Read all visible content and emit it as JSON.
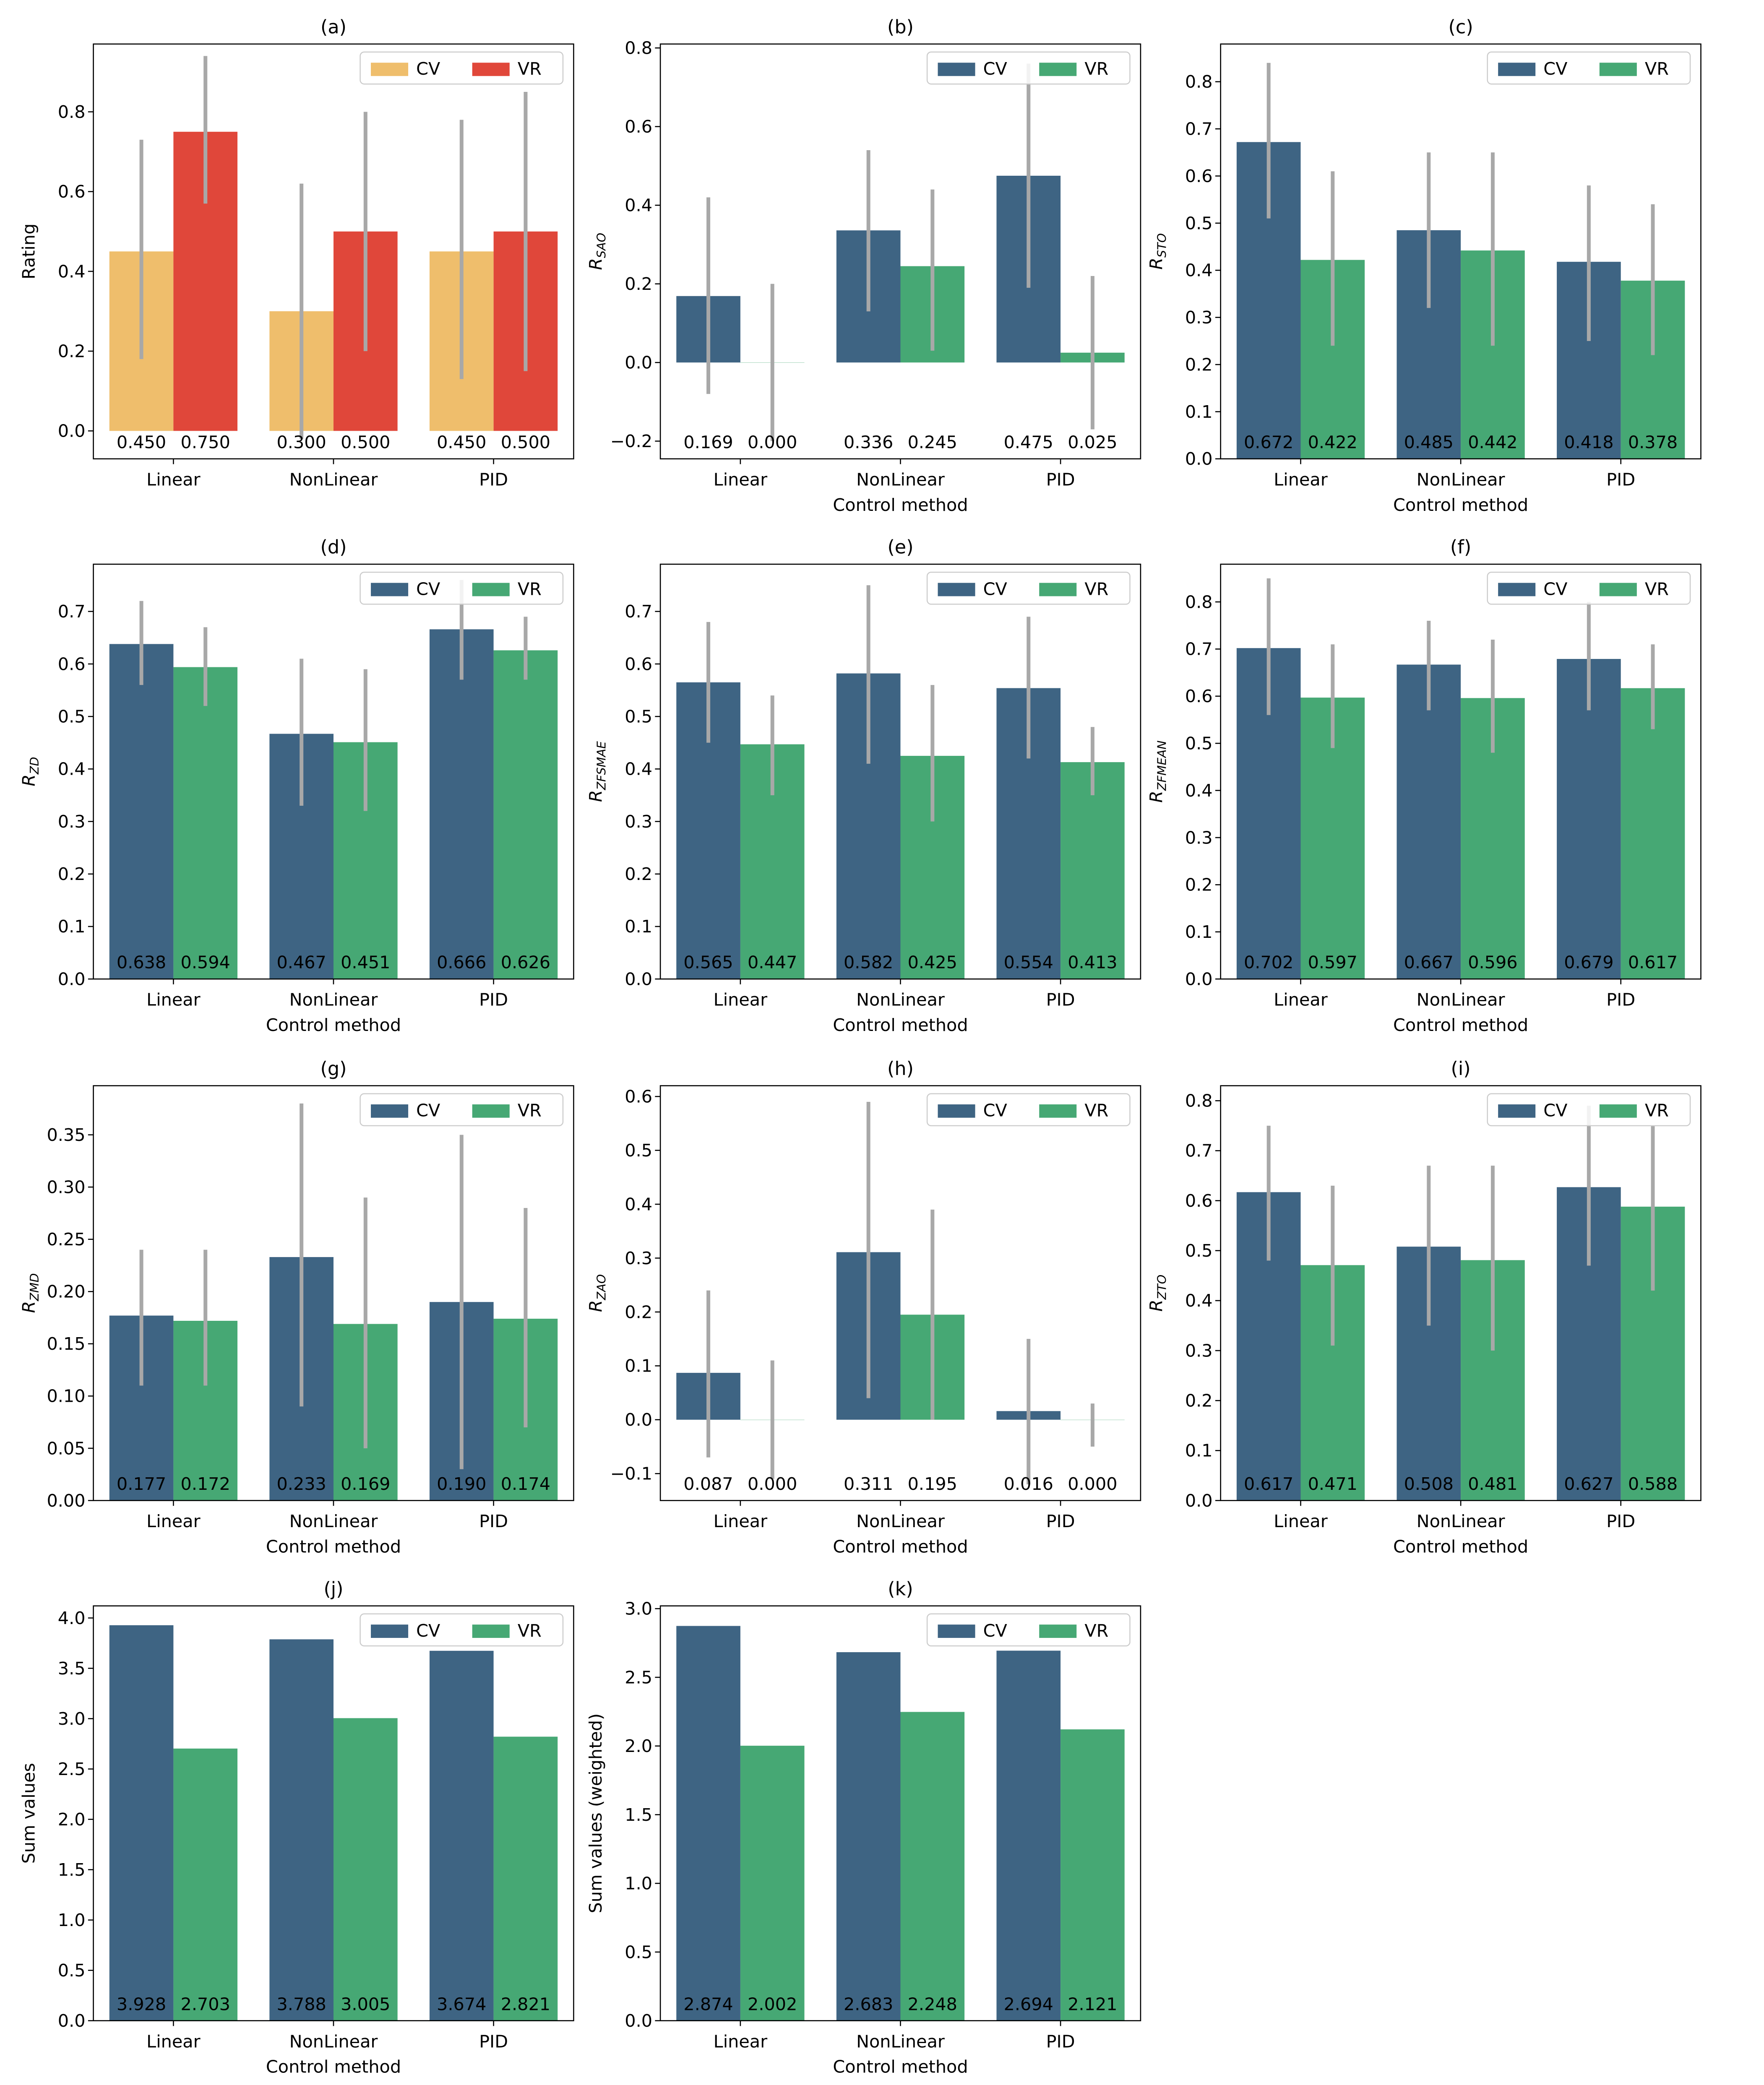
{
  "chart_data": [
    {
      "panel": "(a)",
      "type": "bar",
      "title": "(a)",
      "xlabel": "",
      "ylabel": "Rating",
      "ylabel_sub": "",
      "categories": [
        "Linear",
        "NonLinear",
        "PID"
      ],
      "ylim": [
        -0.07,
        0.97
      ],
      "yticks": [
        0.0,
        0.2,
        0.4,
        0.6,
        0.8
      ],
      "tick_decimals": 1,
      "legend": {
        "position": "top-right",
        "entries": [
          "CV",
          "VR"
        ]
      },
      "series": [
        {
          "name": "CV",
          "color": "#efbe6c",
          "values": [
            0.45,
            0.3,
            0.45
          ],
          "err_low": [
            0.18,
            -0.02,
            0.13
          ],
          "err_high": [
            0.73,
            0.62,
            0.78
          ]
        },
        {
          "name": "VR",
          "color": "#e0473a",
          "values": [
            0.75,
            0.5,
            0.5
          ],
          "err_low": [
            0.57,
            0.2,
            0.15
          ],
          "err_high": [
            0.94,
            0.8,
            0.85
          ]
        }
      ],
      "value_labels": [
        [
          "0.450",
          "0.300",
          "0.450"
        ],
        [
          "0.750",
          "0.500",
          "0.500"
        ]
      ]
    },
    {
      "panel": "(b)",
      "type": "bar",
      "title": "(b)",
      "xlabel": "Control method",
      "ylabel": "R",
      "ylabel_sub": "SAO",
      "categories": [
        "Linear",
        "NonLinear",
        "PID"
      ],
      "ylim": [
        -0.245,
        0.81
      ],
      "yticks": [
        -0.2,
        0.0,
        0.2,
        0.4,
        0.6,
        0.8
      ],
      "tick_decimals": 1,
      "legend": {
        "position": "top-right",
        "entries": [
          "CV",
          "VR"
        ]
      },
      "series": [
        {
          "name": "CV",
          "color": "#3e6483",
          "values": [
            0.169,
            0.336,
            0.475
          ],
          "err_low": [
            -0.08,
            0.13,
            0.19
          ],
          "err_high": [
            0.42,
            0.54,
            0.76
          ]
        },
        {
          "name": "VR",
          "color": "#46a874",
          "values": [
            0.0,
            0.245,
            0.025
          ],
          "err_low": [
            -0.2,
            0.03,
            -0.17
          ],
          "err_high": [
            0.2,
            0.44,
            0.22
          ]
        }
      ],
      "value_labels": [
        [
          "0.169",
          "0.336",
          "0.475"
        ],
        [
          "0.000",
          "0.245",
          "0.025"
        ]
      ]
    },
    {
      "panel": "(c)",
      "type": "bar",
      "title": "(c)",
      "xlabel": "Control method",
      "ylabel": "R",
      "ylabel_sub": "STO",
      "categories": [
        "Linear",
        "NonLinear",
        "PID"
      ],
      "ylim": [
        0,
        0.88
      ],
      "yticks": [
        0.0,
        0.1,
        0.2,
        0.3,
        0.4,
        0.5,
        0.6,
        0.7,
        0.8
      ],
      "tick_decimals": 1,
      "legend": {
        "position": "top-right",
        "entries": [
          "CV",
          "VR"
        ]
      },
      "series": [
        {
          "name": "CV",
          "color": "#3e6483",
          "values": [
            0.672,
            0.485,
            0.418
          ],
          "err_low": [
            0.51,
            0.32,
            0.25
          ],
          "err_high": [
            0.84,
            0.65,
            0.58
          ]
        },
        {
          "name": "VR",
          "color": "#46a874",
          "values": [
            0.422,
            0.442,
            0.378
          ],
          "err_low": [
            0.24,
            0.24,
            0.22
          ],
          "err_high": [
            0.61,
            0.65,
            0.54
          ]
        }
      ],
      "value_labels": [
        [
          "0.672",
          "0.485",
          "0.418"
        ],
        [
          "0.422",
          "0.442",
          "0.378"
        ]
      ]
    },
    {
      "panel": "(d)",
      "type": "bar",
      "title": "(d)",
      "xlabel": "Control method",
      "ylabel": "R",
      "ylabel_sub": "ZD",
      "categories": [
        "Linear",
        "NonLinear",
        "PID"
      ],
      "ylim": [
        0,
        0.79
      ],
      "yticks": [
        0.0,
        0.1,
        0.2,
        0.3,
        0.4,
        0.5,
        0.6,
        0.7
      ],
      "tick_decimals": 1,
      "legend": {
        "position": "top-right",
        "entries": [
          "CV",
          "VR"
        ]
      },
      "series": [
        {
          "name": "CV",
          "color": "#3e6483",
          "values": [
            0.638,
            0.467,
            0.666
          ],
          "err_low": [
            0.56,
            0.33,
            0.57
          ],
          "err_high": [
            0.72,
            0.61,
            0.76
          ]
        },
        {
          "name": "VR",
          "color": "#46a874",
          "values": [
            0.594,
            0.451,
            0.626
          ],
          "err_low": [
            0.52,
            0.32,
            0.57
          ],
          "err_high": [
            0.67,
            0.59,
            0.69
          ]
        }
      ],
      "value_labels": [
        [
          "0.638",
          "0.467",
          "0.666"
        ],
        [
          "0.594",
          "0.451",
          "0.626"
        ]
      ]
    },
    {
      "panel": "(e)",
      "type": "bar",
      "title": "(e)",
      "xlabel": "Control method",
      "ylabel": "R",
      "ylabel_sub": "ZFSMAE",
      "categories": [
        "Linear",
        "NonLinear",
        "PID"
      ],
      "ylim": [
        0,
        0.79
      ],
      "yticks": [
        0.0,
        0.1,
        0.2,
        0.3,
        0.4,
        0.5,
        0.6,
        0.7
      ],
      "tick_decimals": 1,
      "legend": {
        "position": "top-right",
        "entries": [
          "CV",
          "VR"
        ]
      },
      "series": [
        {
          "name": "CV",
          "color": "#3e6483",
          "values": [
            0.565,
            0.582,
            0.554
          ],
          "err_low": [
            0.45,
            0.41,
            0.42
          ],
          "err_high": [
            0.68,
            0.75,
            0.69
          ]
        },
        {
          "name": "VR",
          "color": "#46a874",
          "values": [
            0.447,
            0.425,
            0.413
          ],
          "err_low": [
            0.35,
            0.3,
            0.35
          ],
          "err_high": [
            0.54,
            0.56,
            0.48
          ]
        }
      ],
      "value_labels": [
        [
          "0.565",
          "0.582",
          "0.554"
        ],
        [
          "0.447",
          "0.425",
          "0.413"
        ]
      ]
    },
    {
      "panel": "(f)",
      "type": "bar",
      "title": "(f)",
      "xlabel": "Control method",
      "ylabel": "R",
      "ylabel_sub": "ZFMEAN",
      "categories": [
        "Linear",
        "NonLinear",
        "PID"
      ],
      "ylim": [
        0,
        0.88
      ],
      "yticks": [
        0.0,
        0.1,
        0.2,
        0.3,
        0.4,
        0.5,
        0.6,
        0.7,
        0.8
      ],
      "tick_decimals": 1,
      "legend": {
        "position": "top-right",
        "entries": [
          "CV",
          "VR"
        ]
      },
      "series": [
        {
          "name": "CV",
          "color": "#3e6483",
          "values": [
            0.702,
            0.667,
            0.679
          ],
          "err_low": [
            0.56,
            0.57,
            0.57
          ],
          "err_high": [
            0.85,
            0.76,
            0.8
          ]
        },
        {
          "name": "VR",
          "color": "#46a874",
          "values": [
            0.597,
            0.596,
            0.617
          ],
          "err_low": [
            0.49,
            0.48,
            0.53
          ],
          "err_high": [
            0.71,
            0.72,
            0.71
          ]
        }
      ],
      "value_labels": [
        [
          "0.702",
          "0.667",
          "0.679"
        ],
        [
          "0.597",
          "0.596",
          "0.617"
        ]
      ]
    },
    {
      "panel": "(g)",
      "type": "bar",
      "title": "(g)",
      "xlabel": "Control method",
      "ylabel": "R",
      "ylabel_sub": "ZMD",
      "categories": [
        "Linear",
        "NonLinear",
        "PID"
      ],
      "ylim": [
        0,
        0.397
      ],
      "yticks": [
        0.0,
        0.05,
        0.1,
        0.15,
        0.2,
        0.25,
        0.3,
        0.35
      ],
      "tick_decimals": 2,
      "legend": {
        "position": "top-right",
        "entries": [
          "CV",
          "VR"
        ]
      },
      "series": [
        {
          "name": "CV",
          "color": "#3e6483",
          "values": [
            0.177,
            0.233,
            0.19
          ],
          "err_low": [
            0.11,
            0.09,
            0.03
          ],
          "err_high": [
            0.24,
            0.38,
            0.35
          ]
        },
        {
          "name": "VR",
          "color": "#46a874",
          "values": [
            0.172,
            0.169,
            0.174
          ],
          "err_low": [
            0.11,
            0.05,
            0.07
          ],
          "err_high": [
            0.24,
            0.29,
            0.28
          ]
        }
      ],
      "value_labels": [
        [
          "0.177",
          "0.233",
          "0.190"
        ],
        [
          "0.172",
          "0.169",
          "0.174"
        ]
      ]
    },
    {
      "panel": "(h)",
      "type": "bar",
      "title": "(h)",
      "xlabel": "Control method",
      "ylabel": "R",
      "ylabel_sub": "ZAO",
      "categories": [
        "Linear",
        "NonLinear",
        "PID"
      ],
      "ylim": [
        -0.15,
        0.62
      ],
      "yticks": [
        -0.1,
        0.0,
        0.1,
        0.2,
        0.3,
        0.4,
        0.5,
        0.6
      ],
      "tick_decimals": 1,
      "legend": {
        "position": "top-right",
        "entries": [
          "CV",
          "VR"
        ]
      },
      "series": [
        {
          "name": "CV",
          "color": "#3e6483",
          "values": [
            0.087,
            0.311,
            0.016
          ],
          "err_low": [
            -0.07,
            0.04,
            -0.12
          ],
          "err_high": [
            0.24,
            0.59,
            0.15
          ]
        },
        {
          "name": "VR",
          "color": "#46a874",
          "values": [
            0.0,
            0.195,
            0.0
          ],
          "err_low": [
            -0.11,
            0.0,
            -0.05
          ],
          "err_high": [
            0.11,
            0.39,
            0.03
          ]
        }
      ],
      "value_labels": [
        [
          "0.087",
          "0.311",
          "0.016"
        ],
        [
          "0.000",
          "0.195",
          "0.000"
        ]
      ]
    },
    {
      "panel": "(i)",
      "type": "bar",
      "title": "(i)",
      "xlabel": "Control method",
      "ylabel": "R",
      "ylabel_sub": "ZTO",
      "categories": [
        "Linear",
        "NonLinear",
        "PID"
      ],
      "ylim": [
        0,
        0.83
      ],
      "yticks": [
        0.0,
        0.1,
        0.2,
        0.3,
        0.4,
        0.5,
        0.6,
        0.7,
        0.8
      ],
      "tick_decimals": 1,
      "legend": {
        "position": "top-right",
        "entries": [
          "CV",
          "VR"
        ]
      },
      "series": [
        {
          "name": "CV",
          "color": "#3e6483",
          "values": [
            0.617,
            0.508,
            0.627
          ],
          "err_low": [
            0.48,
            0.35,
            0.47
          ],
          "err_high": [
            0.75,
            0.67,
            0.79
          ]
        },
        {
          "name": "VR",
          "color": "#46a874",
          "values": [
            0.471,
            0.481,
            0.588
          ],
          "err_low": [
            0.31,
            0.3,
            0.42
          ],
          "err_high": [
            0.63,
            0.67,
            0.75
          ]
        }
      ],
      "value_labels": [
        [
          "0.617",
          "0.508",
          "0.627"
        ],
        [
          "0.471",
          "0.481",
          "0.588"
        ]
      ]
    },
    {
      "panel": "(j)",
      "type": "bar",
      "title": "(j)",
      "xlabel": "Control method",
      "ylabel": "Sum values",
      "ylabel_sub": "",
      "categories": [
        "Linear",
        "NonLinear",
        "PID"
      ],
      "ylim": [
        0,
        4.12
      ],
      "yticks": [
        0.0,
        0.5,
        1.0,
        1.5,
        2.0,
        2.5,
        3.0,
        3.5,
        4.0
      ],
      "tick_decimals": 1,
      "legend": {
        "position": "top-right",
        "entries": [
          "CV",
          "VR"
        ]
      },
      "series": [
        {
          "name": "CV",
          "color": "#3e6483",
          "values": [
            3.928,
            3.788,
            3.674
          ]
        },
        {
          "name": "VR",
          "color": "#46a874",
          "values": [
            2.703,
            3.005,
            2.821
          ]
        }
      ],
      "value_labels": [
        [
          "3.928",
          "3.788",
          "3.674"
        ],
        [
          "2.703",
          "3.005",
          "2.821"
        ]
      ]
    },
    {
      "panel": "(k)",
      "type": "bar",
      "title": "(k)",
      "xlabel": "Control method",
      "ylabel": "Sum values (weighted)",
      "ylabel_sub": "",
      "categories": [
        "Linear",
        "NonLinear",
        "PID"
      ],
      "ylim": [
        0,
        3.02
      ],
      "yticks": [
        0.0,
        0.5,
        1.0,
        1.5,
        2.0,
        2.5,
        3.0
      ],
      "tick_decimals": 1,
      "legend": {
        "position": "top-right",
        "entries": [
          "CV",
          "VR"
        ]
      },
      "series": [
        {
          "name": "CV",
          "color": "#3e6483",
          "values": [
            2.874,
            2.683,
            2.694
          ]
        },
        {
          "name": "VR",
          "color": "#46a874",
          "values": [
            2.002,
            2.248,
            2.121
          ]
        }
      ],
      "value_labels": [
        [
          "2.874",
          "2.683",
          "2.694"
        ],
        [
          "2.002",
          "2.248",
          "2.121"
        ]
      ]
    }
  ]
}
